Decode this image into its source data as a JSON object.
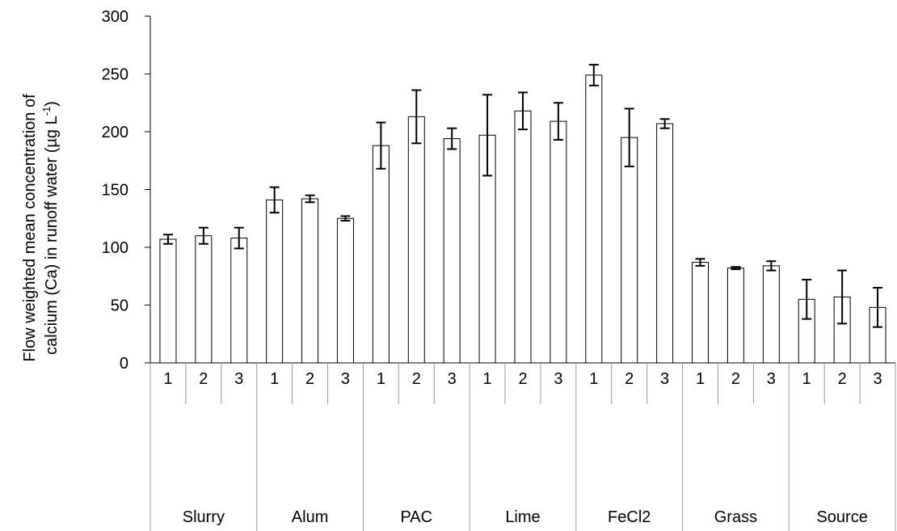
{
  "chart_data": {
    "type": "bar",
    "title": "",
    "xlabel": "",
    "ylabel_line1": "Flow weighted mean concentration of",
    "ylabel_line2_pre": "calcium (Ca) in runoff water (µg L",
    "ylabel_sup": "-1",
    "ylabel_line2_post": ")",
    "ylim": [
      0,
      300
    ],
    "yticks": [
      0,
      50,
      100,
      150,
      200,
      250,
      300
    ],
    "groups": [
      "Slurry",
      "Alum",
      "PAC",
      "Lime",
      "FeCl2",
      "Grass",
      "Source"
    ],
    "subcategories": [
      "1",
      "2",
      "3"
    ],
    "values": [
      [
        107,
        110,
        108
      ],
      [
        141,
        142,
        125
      ],
      [
        188,
        213,
        194
      ],
      [
        197,
        218,
        209
      ],
      [
        249,
        195,
        207
      ],
      [
        87,
        82,
        84
      ],
      [
        55,
        57,
        48
      ]
    ],
    "errors": [
      [
        4,
        7,
        9
      ],
      [
        11,
        3,
        2
      ],
      [
        20,
        23,
        9
      ],
      [
        35,
        16,
        16
      ],
      [
        9,
        25,
        4
      ],
      [
        3,
        1,
        4
      ],
      [
        17,
        23,
        17
      ]
    ],
    "grid": false,
    "legend": "none",
    "bar_fill": "#ffffff",
    "bar_stroke": "#000000"
  }
}
